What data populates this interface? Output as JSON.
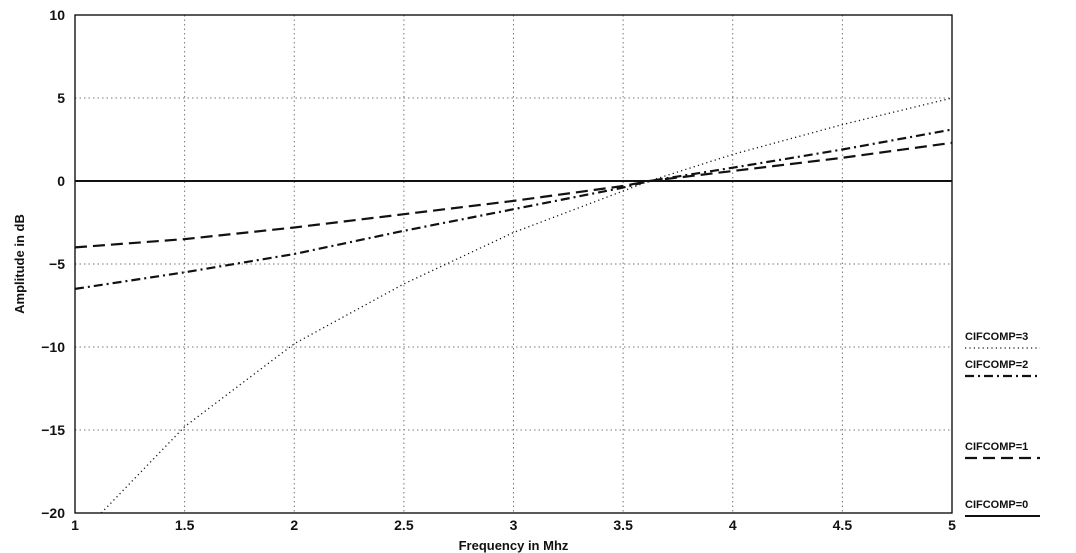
{
  "chart_data": {
    "type": "line",
    "title": "",
    "xlabel": "Frequency in Mhz",
    "ylabel": "Amplitude in dB",
    "xlim": [
      1,
      5
    ],
    "ylim": [
      -20,
      10
    ],
    "xticks": [
      1,
      1.5,
      2,
      2.5,
      3,
      3.5,
      4,
      4.5,
      5
    ],
    "yticks": [
      10,
      5,
      0,
      -5,
      -10,
      -15,
      -20
    ],
    "xtick_labels": [
      "1",
      "1.5",
      "2",
      "2.5",
      "3",
      "3.5",
      "4",
      "4.5",
      "5"
    ],
    "ytick_labels": [
      "10",
      "5",
      "0",
      "−5",
      "−10",
      "−15",
      "−20"
    ],
    "grid": true,
    "legend_position": "right",
    "series": [
      {
        "name": "CIFCOMP=3",
        "style": "dotted",
        "x": [
          1.12,
          1.5,
          2.0,
          2.5,
          3.0,
          3.5,
          3.62,
          4.0,
          4.5,
          5.0
        ],
        "y": [
          -20,
          -14.8,
          -9.8,
          -6.2,
          -3.1,
          -0.6,
          0,
          1.6,
          3.4,
          5.0
        ]
      },
      {
        "name": "CIFCOMP=2",
        "style": "dash-dot",
        "x": [
          1.0,
          1.5,
          2.0,
          2.5,
          3.0,
          3.5,
          3.62,
          4.0,
          4.5,
          5.0
        ],
        "y": [
          -6.5,
          -5.5,
          -4.4,
          -3.0,
          -1.7,
          -0.4,
          0,
          0.8,
          1.9,
          3.1
        ]
      },
      {
        "name": "CIFCOMP=1",
        "style": "dashed",
        "x": [
          1.0,
          1.5,
          2.0,
          2.5,
          3.0,
          3.5,
          3.62,
          4.0,
          4.5,
          5.0
        ],
        "y": [
          -4.0,
          -3.5,
          -2.8,
          -2.0,
          -1.2,
          -0.3,
          0,
          0.6,
          1.4,
          2.3
        ]
      },
      {
        "name": "CIFCOMP=0",
        "style": "solid",
        "x": [
          1.0,
          5.0
        ],
        "y": [
          0,
          0
        ]
      }
    ]
  }
}
